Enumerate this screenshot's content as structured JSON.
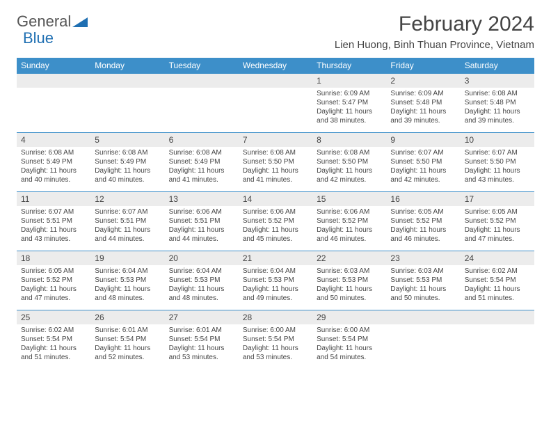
{
  "logo": {
    "textA": "General",
    "textB": "Blue"
  },
  "title": "February 2024",
  "location": "Lien Huong, Binh Thuan Province, Vietnam",
  "colors": {
    "header_bg": "#3d8fc9",
    "header_text": "#ffffff",
    "daynum_bg": "#ececec",
    "border": "#3d8fc9",
    "text": "#444444",
    "logo_gray": "#555555",
    "logo_blue": "#1f6fb2"
  },
  "day_names": [
    "Sunday",
    "Monday",
    "Tuesday",
    "Wednesday",
    "Thursday",
    "Friday",
    "Saturday"
  ],
  "weeks": [
    {
      "nums": [
        "",
        "",
        "",
        "",
        "1",
        "2",
        "3"
      ],
      "cells": [
        null,
        null,
        null,
        null,
        {
          "sunrise": "6:09 AM",
          "sunset": "5:47 PM",
          "daylight": "11 hours and 38 minutes."
        },
        {
          "sunrise": "6:09 AM",
          "sunset": "5:48 PM",
          "daylight": "11 hours and 39 minutes."
        },
        {
          "sunrise": "6:08 AM",
          "sunset": "5:48 PM",
          "daylight": "11 hours and 39 minutes."
        }
      ]
    },
    {
      "nums": [
        "4",
        "5",
        "6",
        "7",
        "8",
        "9",
        "10"
      ],
      "cells": [
        {
          "sunrise": "6:08 AM",
          "sunset": "5:49 PM",
          "daylight": "11 hours and 40 minutes."
        },
        {
          "sunrise": "6:08 AM",
          "sunset": "5:49 PM",
          "daylight": "11 hours and 40 minutes."
        },
        {
          "sunrise": "6:08 AM",
          "sunset": "5:49 PM",
          "daylight": "11 hours and 41 minutes."
        },
        {
          "sunrise": "6:08 AM",
          "sunset": "5:50 PM",
          "daylight": "11 hours and 41 minutes."
        },
        {
          "sunrise": "6:08 AM",
          "sunset": "5:50 PM",
          "daylight": "11 hours and 42 minutes."
        },
        {
          "sunrise": "6:07 AM",
          "sunset": "5:50 PM",
          "daylight": "11 hours and 42 minutes."
        },
        {
          "sunrise": "6:07 AM",
          "sunset": "5:50 PM",
          "daylight": "11 hours and 43 minutes."
        }
      ]
    },
    {
      "nums": [
        "11",
        "12",
        "13",
        "14",
        "15",
        "16",
        "17"
      ],
      "cells": [
        {
          "sunrise": "6:07 AM",
          "sunset": "5:51 PM",
          "daylight": "11 hours and 43 minutes."
        },
        {
          "sunrise": "6:07 AM",
          "sunset": "5:51 PM",
          "daylight": "11 hours and 44 minutes."
        },
        {
          "sunrise": "6:06 AM",
          "sunset": "5:51 PM",
          "daylight": "11 hours and 44 minutes."
        },
        {
          "sunrise": "6:06 AM",
          "sunset": "5:52 PM",
          "daylight": "11 hours and 45 minutes."
        },
        {
          "sunrise": "6:06 AM",
          "sunset": "5:52 PM",
          "daylight": "11 hours and 46 minutes."
        },
        {
          "sunrise": "6:05 AM",
          "sunset": "5:52 PM",
          "daylight": "11 hours and 46 minutes."
        },
        {
          "sunrise": "6:05 AM",
          "sunset": "5:52 PM",
          "daylight": "11 hours and 47 minutes."
        }
      ]
    },
    {
      "nums": [
        "18",
        "19",
        "20",
        "21",
        "22",
        "23",
        "24"
      ],
      "cells": [
        {
          "sunrise": "6:05 AM",
          "sunset": "5:52 PM",
          "daylight": "11 hours and 47 minutes."
        },
        {
          "sunrise": "6:04 AM",
          "sunset": "5:53 PM",
          "daylight": "11 hours and 48 minutes."
        },
        {
          "sunrise": "6:04 AM",
          "sunset": "5:53 PM",
          "daylight": "11 hours and 48 minutes."
        },
        {
          "sunrise": "6:04 AM",
          "sunset": "5:53 PM",
          "daylight": "11 hours and 49 minutes."
        },
        {
          "sunrise": "6:03 AM",
          "sunset": "5:53 PM",
          "daylight": "11 hours and 50 minutes."
        },
        {
          "sunrise": "6:03 AM",
          "sunset": "5:53 PM",
          "daylight": "11 hours and 50 minutes."
        },
        {
          "sunrise": "6:02 AM",
          "sunset": "5:54 PM",
          "daylight": "11 hours and 51 minutes."
        }
      ]
    },
    {
      "nums": [
        "25",
        "26",
        "27",
        "28",
        "29",
        "",
        ""
      ],
      "cells": [
        {
          "sunrise": "6:02 AM",
          "sunset": "5:54 PM",
          "daylight": "11 hours and 51 minutes."
        },
        {
          "sunrise": "6:01 AM",
          "sunset": "5:54 PM",
          "daylight": "11 hours and 52 minutes."
        },
        {
          "sunrise": "6:01 AM",
          "sunset": "5:54 PM",
          "daylight": "11 hours and 53 minutes."
        },
        {
          "sunrise": "6:00 AM",
          "sunset": "5:54 PM",
          "daylight": "11 hours and 53 minutes."
        },
        {
          "sunrise": "6:00 AM",
          "sunset": "5:54 PM",
          "daylight": "11 hours and 54 minutes."
        },
        null,
        null
      ]
    }
  ],
  "labels": {
    "sunrise": "Sunrise: ",
    "sunset": "Sunset: ",
    "daylight": "Daylight: "
  }
}
